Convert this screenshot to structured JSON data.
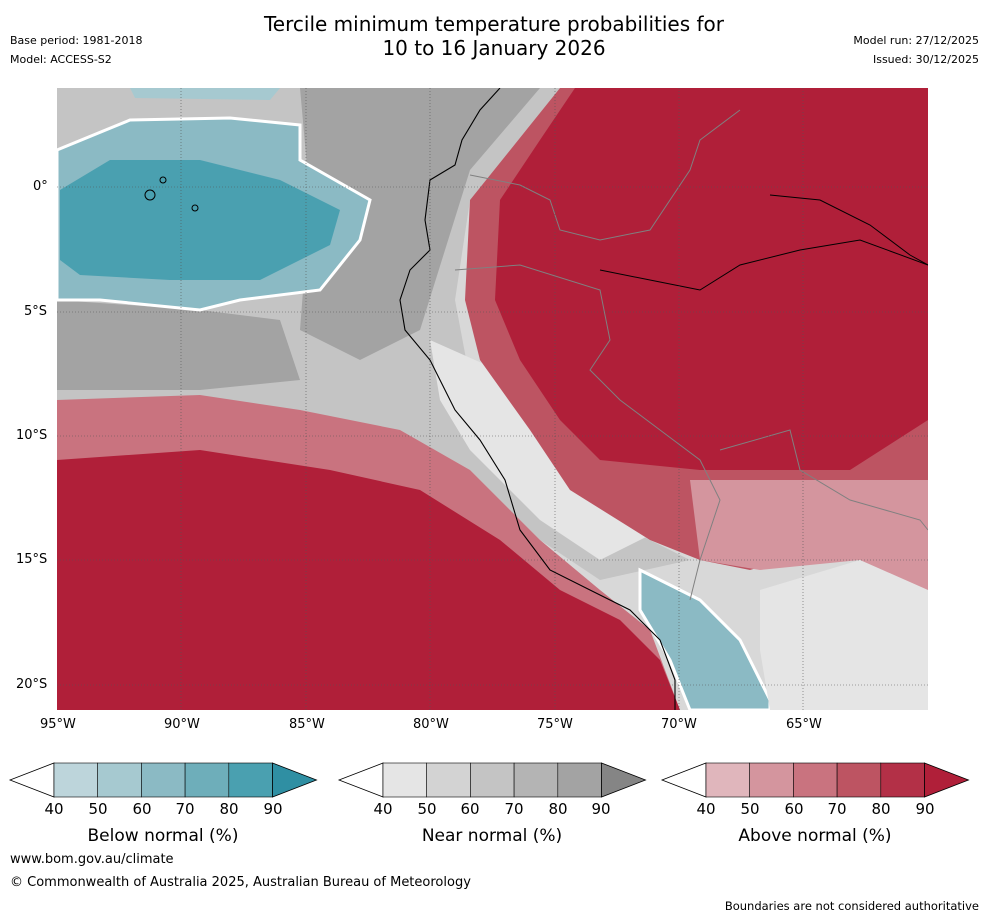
{
  "title": {
    "line1": "Tercile minimum temperature probabilities for",
    "line2": "10 to 16 January 2026"
  },
  "meta": {
    "base_period": "Base period: 1981-2018",
    "model": "Model: ACCESS-S2",
    "model_run": "Model run: 27/12/2025",
    "issued": "Issued: 30/12/2025"
  },
  "axes": {
    "lon_labels": [
      "95°W",
      "90°W",
      "85°W",
      "80°W",
      "75°W",
      "70°W",
      "65°W"
    ],
    "lat_labels": [
      "0°",
      "5°S",
      "10°S",
      "15°S",
      "20°S"
    ]
  },
  "colorbars": [
    {
      "label": "Below normal (%)",
      "ticks": [
        "40",
        "50",
        "60",
        "70",
        "80",
        "90"
      ],
      "colors": [
        "#bdd5db",
        "#a6c9d0",
        "#8bbac4",
        "#6eaeba",
        "#4aa0b0",
        "#2f8fa3"
      ]
    },
    {
      "label": "Near normal (%)",
      "ticks": [
        "40",
        "50",
        "60",
        "70",
        "80",
        "90"
      ],
      "colors": [
        "#e5e5e5",
        "#d3d3d3",
        "#c4c4c4",
        "#b4b4b4",
        "#a3a3a3",
        "#858585"
      ]
    },
    {
      "label": "Above normal (%)",
      "ticks": [
        "40",
        "50",
        "60",
        "70",
        "80",
        "90"
      ],
      "colors": [
        "#e0b6bc",
        "#d4959e",
        "#c9737f",
        "#bd5462",
        "#b33047",
        "#b01f39"
      ]
    }
  ],
  "footer": {
    "url": "www.bom.gov.au/climate",
    "copyright": "© Commonwealth of Australia 2025, Australian Bureau of Meteorology",
    "disclaimer": "Boundaries are not considered authoritative"
  }
}
